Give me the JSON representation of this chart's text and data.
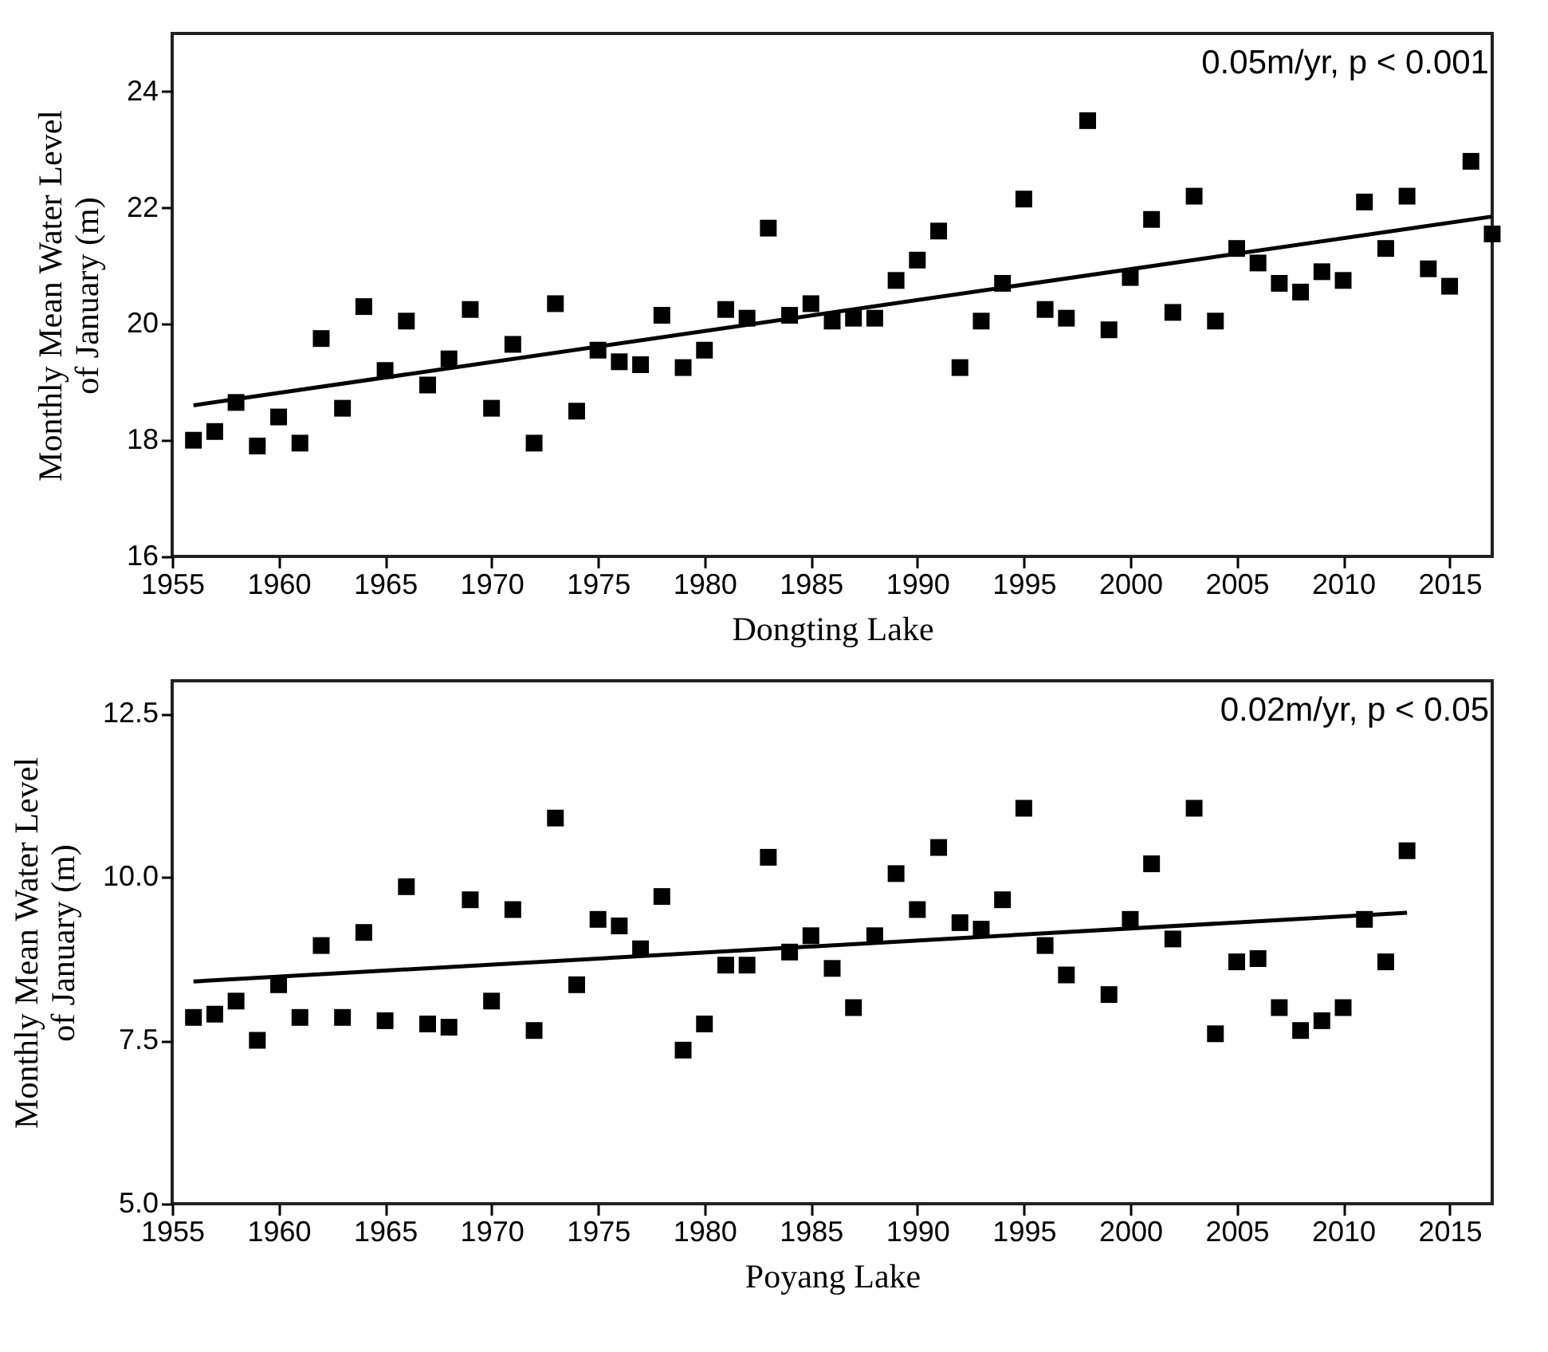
{
  "chart_data": [
    {
      "type": "scatter",
      "xlabel": "Dongting Lake",
      "ylabel": "Monthly Mean Water Level\nof January (m)",
      "annotations": [
        "0.05m/yr, p < 0.001"
      ],
      "xlim": [
        1955,
        2017
      ],
      "xticks": [
        1955,
        1960,
        1965,
        1970,
        1975,
        1980,
        1985,
        1990,
        1995,
        2000,
        2005,
        2010,
        2015
      ],
      "ylim": [
        16,
        25
      ],
      "yticks": [
        16,
        18,
        20,
        22,
        24
      ],
      "grid": false,
      "x": [
        1956,
        1957,
        1958,
        1959,
        1960,
        1961,
        1962,
        1963,
        1964,
        1965,
        1966,
        1967,
        1968,
        1969,
        1970,
        1971,
        1972,
        1973,
        1974,
        1975,
        1976,
        1977,
        1978,
        1979,
        1980,
        1981,
        1982,
        1983,
        1984,
        1985,
        1986,
        1987,
        1988,
        1989,
        1990,
        1991,
        1992,
        1993,
        1994,
        1995,
        1996,
        1997,
        1998,
        1999,
        2000,
        2001,
        2002,
        2003,
        2004,
        2005,
        2006,
        2007,
        2008,
        2009,
        2010,
        2011,
        2012,
        2013,
        2014,
        2015,
        2016,
        2017
      ],
      "series": [
        {
          "marker": "square",
          "color": "#000000",
          "values": [
            18.0,
            18.15,
            18.65,
            17.9,
            18.4,
            17.95,
            19.75,
            18.55,
            20.3,
            19.2,
            20.05,
            18.95,
            19.4,
            20.25,
            18.55,
            19.65,
            17.95,
            20.35,
            18.5,
            19.55,
            19.35,
            19.3,
            20.15,
            19.25,
            19.55,
            20.25,
            20.1,
            21.65,
            20.15,
            20.35,
            20.05,
            20.1,
            20.1,
            20.75,
            21.1,
            21.6,
            19.25,
            20.05,
            20.7,
            22.15,
            20.25,
            20.1,
            23.5,
            19.9,
            20.8,
            21.8,
            20.2,
            22.2,
            20.05,
            21.3,
            21.05,
            20.7,
            20.55,
            20.9,
            20.75,
            22.1,
            21.3,
            22.2,
            20.95,
            20.65,
            22.8,
            21.55
          ]
        },
        {
          "type": "line",
          "color": "#000000",
          "x": [
            1956,
            2017
          ],
          "values": [
            18.6,
            21.85
          ]
        }
      ]
    },
    {
      "type": "scatter",
      "xlabel": "Poyang Lake",
      "ylabel": "Monthly Mean Water Level\nof January (m)",
      "annotations": [
        "0.02m/yr, p < 0.05"
      ],
      "xlim": [
        1955,
        2017
      ],
      "xticks": [
        1955,
        1960,
        1965,
        1970,
        1975,
        1980,
        1985,
        1990,
        1995,
        2000,
        2005,
        2010,
        2015
      ],
      "ylim": [
        5,
        13
      ],
      "yticks": [
        {
          "value": 5,
          "label": "5.0"
        },
        {
          "value": 7.5,
          "label": "7.5"
        },
        {
          "value": 10,
          "label": "10.0"
        },
        {
          "value": 12.5,
          "label": "12.5"
        }
      ],
      "grid": false,
      "x": [
        1956,
        1957,
        1958,
        1959,
        1960,
        1961,
        1962,
        1963,
        1964,
        1965,
        1966,
        1967,
        1968,
        1969,
        1970,
        1971,
        1972,
        1973,
        1974,
        1975,
        1976,
        1977,
        1978,
        1979,
        1980,
        1981,
        1982,
        1983,
        1984,
        1985,
        1986,
        1987,
        1988,
        1989,
        1990,
        1991,
        1992,
        1993,
        1994,
        1995,
        1996,
        1997,
        1999,
        2000,
        2001,
        2002,
        2003,
        2004,
        2005,
        2006,
        2007,
        2008,
        2009,
        2010,
        2011,
        2012,
        2013
      ],
      "series": [
        {
          "marker": "square",
          "color": "#000000",
          "values": [
            7.85,
            7.9,
            8.1,
            7.5,
            8.35,
            7.85,
            8.95,
            7.85,
            9.15,
            7.8,
            9.85,
            7.75,
            7.7,
            9.65,
            8.1,
            9.5,
            7.65,
            10.9,
            8.35,
            9.35,
            9.25,
            8.9,
            9.7,
            7.35,
            7.75,
            8.65,
            8.65,
            10.3,
            8.85,
            9.1,
            8.6,
            8.0,
            9.1,
            10.05,
            9.5,
            10.45,
            9.3,
            9.2,
            9.65,
            11.05,
            8.95,
            8.5,
            8.2,
            9.35,
            10.2,
            9.05,
            11.05,
            7.6,
            8.7,
            8.75,
            8.0,
            7.65,
            7.8,
            8.0,
            9.35,
            8.7,
            10.4
          ]
        },
        {
          "type": "line",
          "color": "#000000",
          "x": [
            1956,
            2013
          ],
          "values": [
            8.4,
            9.45
          ]
        }
      ]
    }
  ]
}
